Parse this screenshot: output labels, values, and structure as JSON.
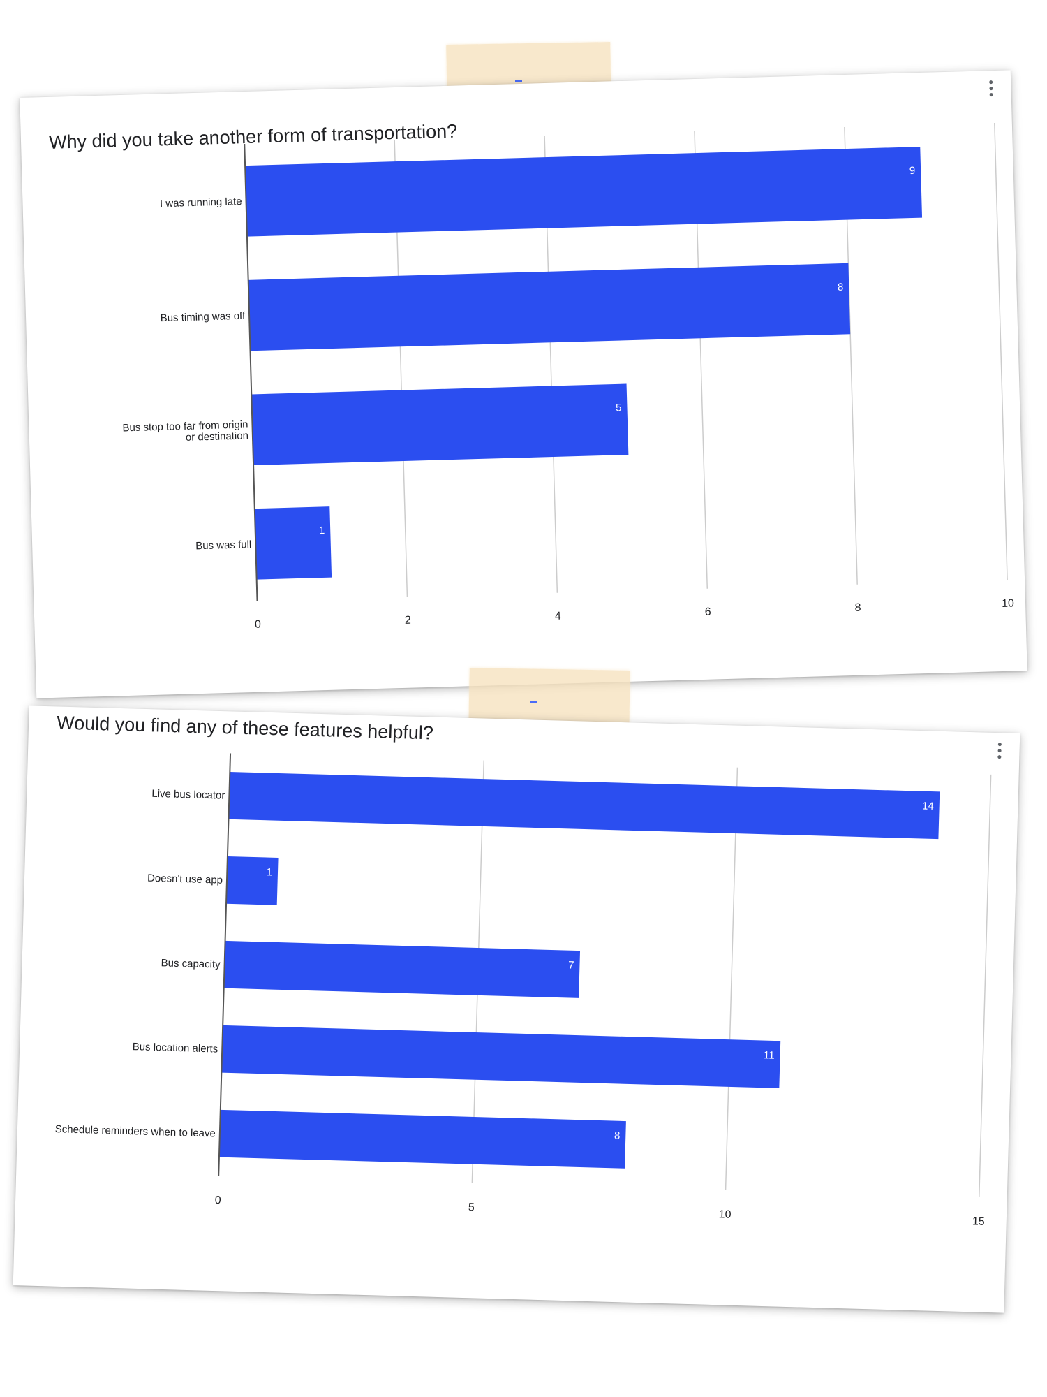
{
  "colors": {
    "bar": "#2b4ef0",
    "bar_label": "#ffffff",
    "grid": "#cccccc",
    "axis": "#555555",
    "text": "#202124"
  },
  "icons": {
    "menu": "more-vert-icon"
  },
  "cards": [
    {
      "title": "Why did you take another form of transportation?",
      "menu_icon": "more-vert-icon"
    },
    {
      "title": "Would you find any of these features helpful?",
      "menu_icon": "more-vert-icon"
    }
  ],
  "chart_data": [
    {
      "type": "bar",
      "orientation": "horizontal",
      "title": "Why did you take another form of transportation?",
      "categories": [
        "I was running late",
        "Bus timing was off",
        "Bus stop too far from origin or destination",
        "Bus was full"
      ],
      "values": [
        9,
        8,
        5,
        1
      ],
      "data_labels": [
        "9",
        "8",
        "5",
        "1"
      ],
      "xlim": [
        0,
        10
      ],
      "ticks": [
        0,
        2,
        4,
        6,
        8,
        10
      ],
      "tick_labels": [
        "0",
        "2",
        "4",
        "6",
        "8",
        "10"
      ],
      "grid": true,
      "legend": "none",
      "xlabel": "",
      "ylabel": ""
    },
    {
      "type": "bar",
      "orientation": "horizontal",
      "title": "Would you find any of these features helpful?",
      "categories": [
        "Live bus locator",
        "Doesn't use app",
        "Bus capacity",
        "Bus location alerts",
        "Schedule reminders when to leave"
      ],
      "values": [
        14,
        1,
        7,
        11,
        8
      ],
      "data_labels": [
        "14",
        "1",
        "7",
        "11",
        "8"
      ],
      "xlim": [
        0,
        15
      ],
      "ticks": [
        0,
        5,
        10,
        15
      ],
      "tick_labels": [
        "0",
        "5",
        "10",
        "15"
      ],
      "grid": true,
      "legend": "none",
      "xlabel": "",
      "ylabel": ""
    }
  ]
}
